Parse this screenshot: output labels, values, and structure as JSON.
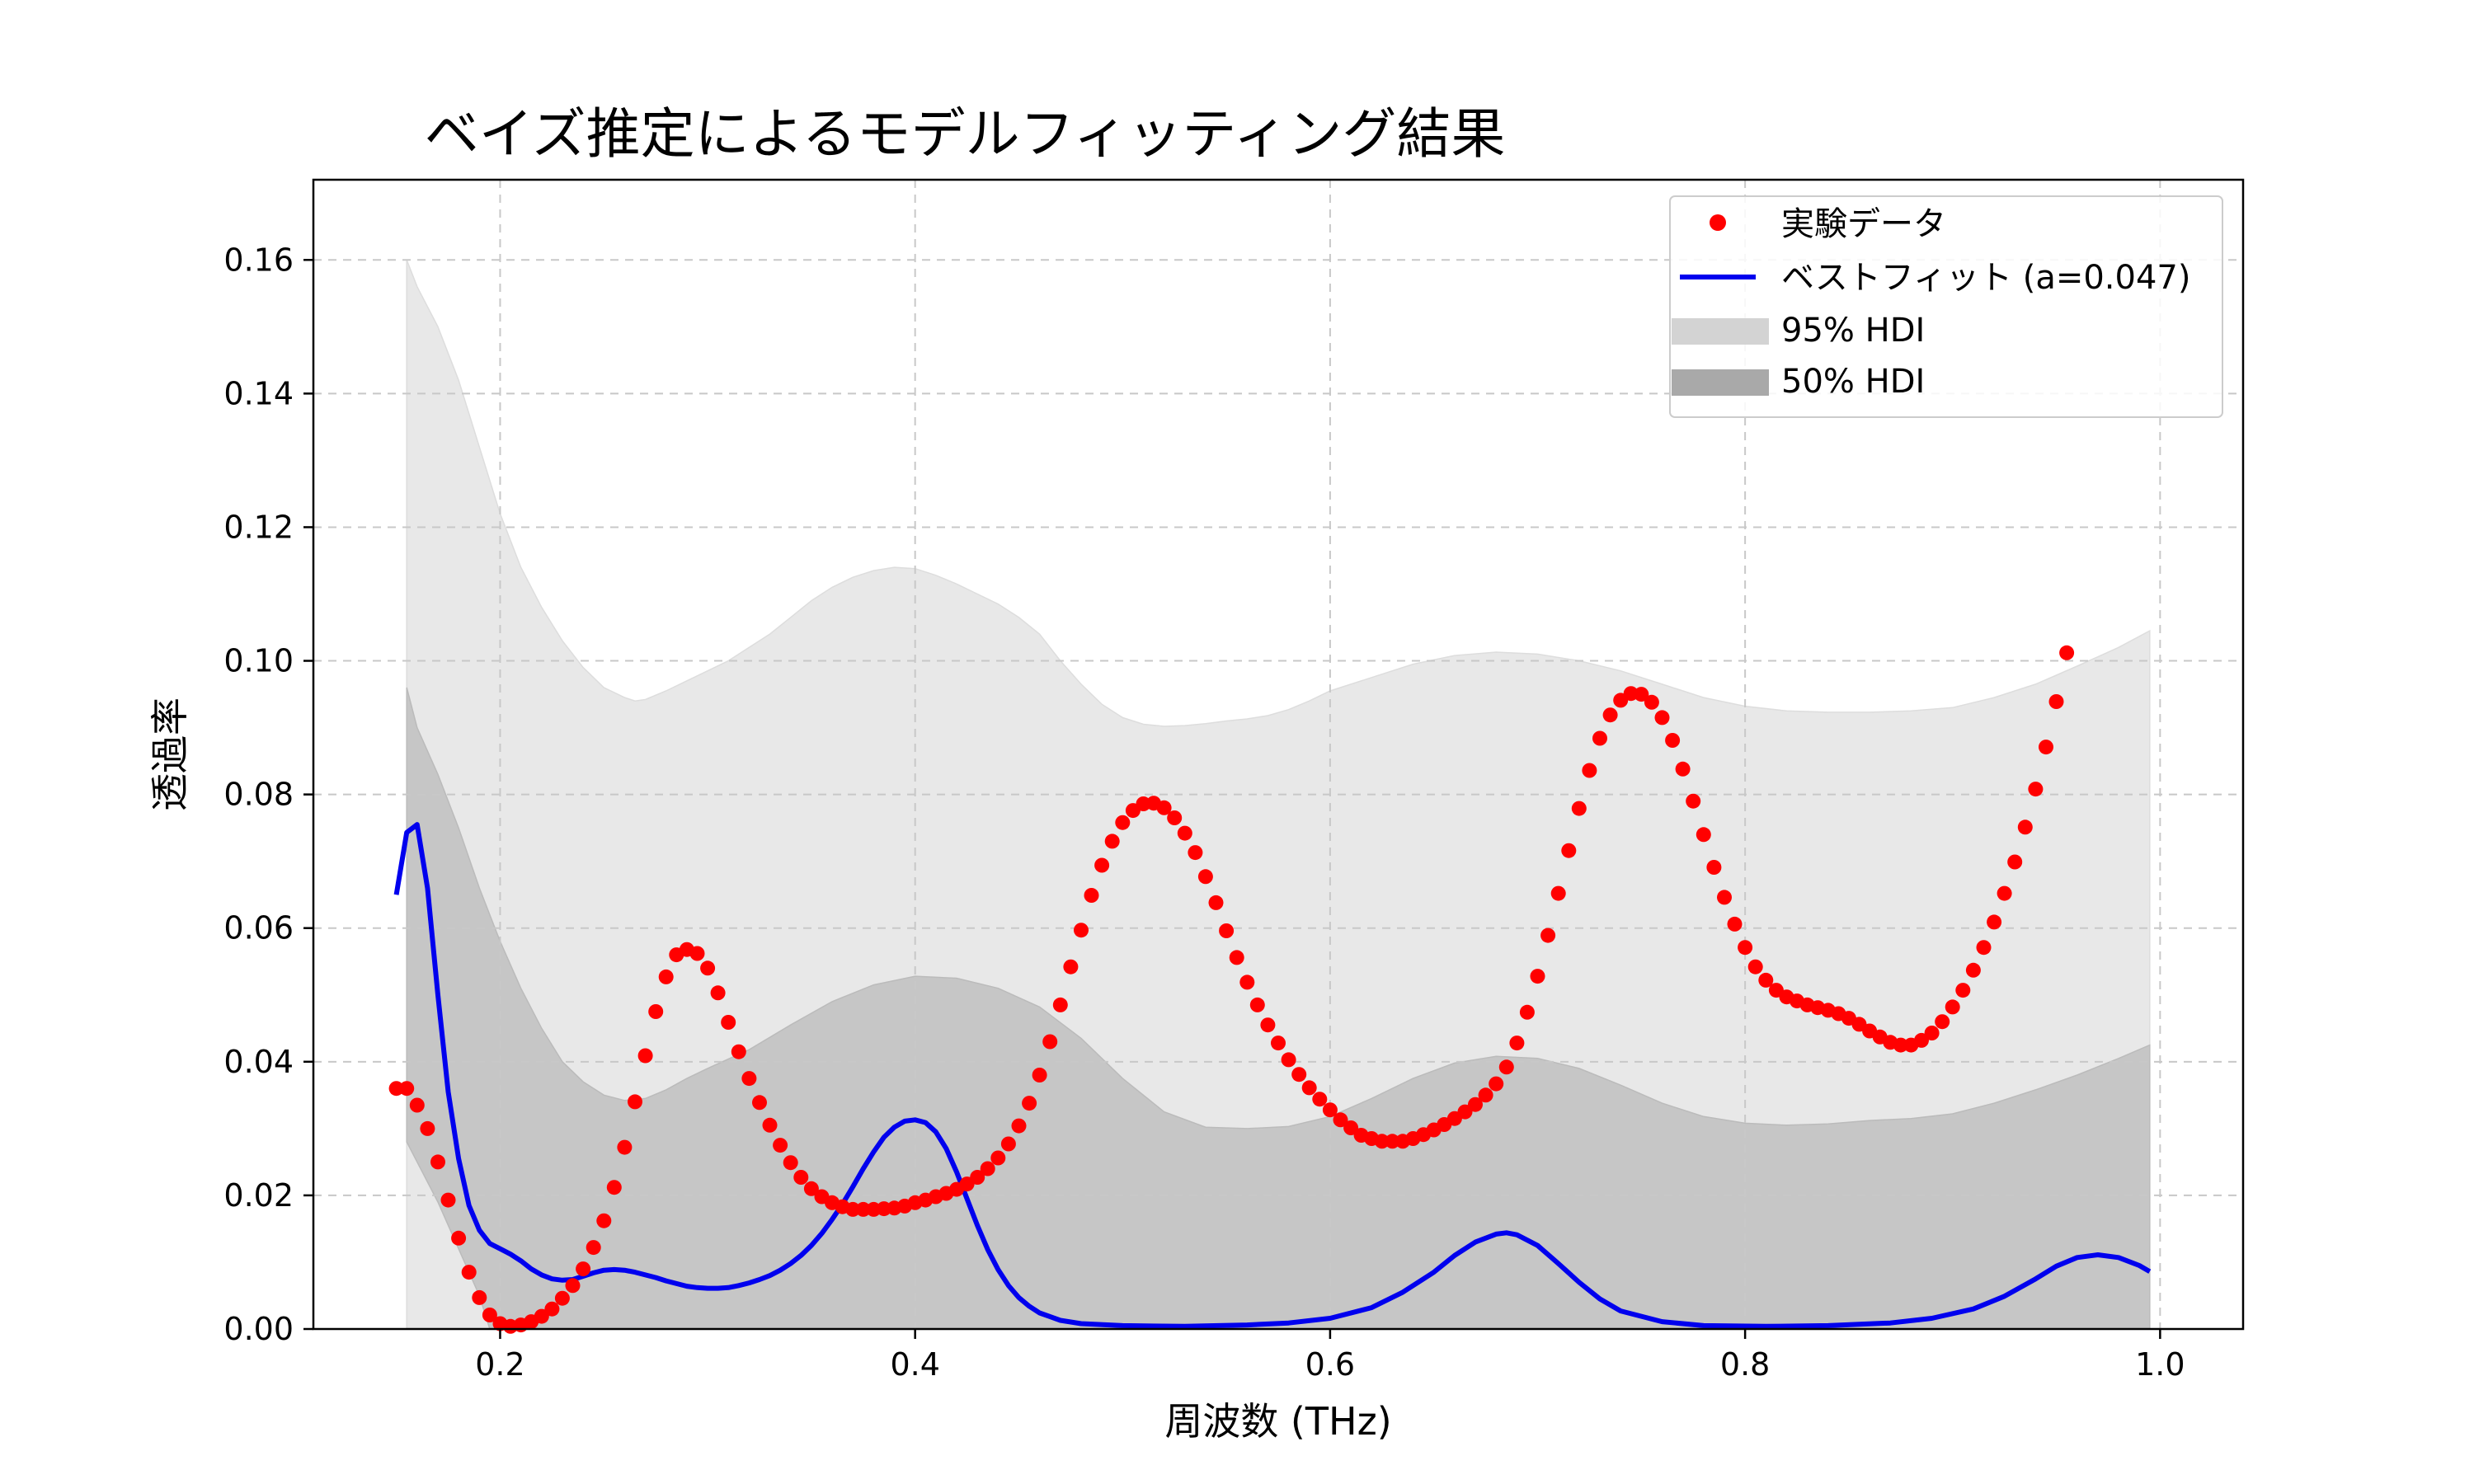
{
  "chart_data": {
    "type": "line",
    "title": "ベイズ推定によるモデルフィッティング結果",
    "xlabel": "周波数 (THz)",
    "ylabel": "透過率",
    "xlim": [
      0.11,
      1.04
    ],
    "ylim": [
      0.0,
      0.172
    ],
    "x_ticks": [
      0.2,
      0.4,
      0.6,
      0.8,
      1.0
    ],
    "x_tick_labels": [
      "0.2",
      "0.4",
      "0.6",
      "0.8",
      "1.0"
    ],
    "y_ticks": [
      0.0,
      0.02,
      0.04,
      0.06,
      0.08,
      0.1,
      0.12,
      0.14,
      0.16
    ],
    "y_tick_labels": [
      "0.00",
      "0.02",
      "0.04",
      "0.06",
      "0.08",
      "0.10",
      "0.12",
      "0.14",
      "0.16"
    ],
    "grid": true,
    "legend_position": "top-right",
    "colors": {
      "data": "#ff0000",
      "fit": "#0000ee",
      "hdi95": "#e8e8e8",
      "hdi50": "#c6c6c6",
      "hdi95_legend": "#d3d3d3",
      "hdi50_legend": "#a9a9a9"
    },
    "series": [
      {
        "name": "実験データ",
        "kind": "scatter",
        "x_start": 0.15,
        "x_step": 0.005,
        "y": [
          0.036,
          0.036,
          0.0335,
          0.03,
          0.025,
          0.0193,
          0.0136,
          0.0085,
          0.0047,
          0.0021,
          0.0008,
          0.0004,
          0.0006,
          0.0011,
          0.0019,
          0.003,
          0.0046,
          0.0065,
          0.009,
          0.0122,
          0.0162,
          0.0212,
          0.0272,
          0.034,
          0.0409,
          0.0475,
          0.0527,
          0.056,
          0.0568,
          0.0562,
          0.054,
          0.0503,
          0.0459,
          0.0415,
          0.0375,
          0.0339,
          0.0305,
          0.0275,
          0.0249,
          0.0227,
          0.021,
          0.0198,
          0.0189,
          0.0183,
          0.0179,
          0.0179,
          0.0179,
          0.018,
          0.0181,
          0.0184,
          0.0189,
          0.0193,
          0.0198,
          0.0203,
          0.0209,
          0.0217,
          0.0227,
          0.024,
          0.0256,
          0.0277,
          0.0304,
          0.0338,
          0.038,
          0.043,
          0.0485,
          0.0542,
          0.0597,
          0.0649,
          0.0694,
          0.073,
          0.0758,
          0.0776,
          0.0786,
          0.0787,
          0.078,
          0.0765,
          0.0742,
          0.0713,
          0.0677,
          0.0638,
          0.0596,
          0.0556,
          0.0519,
          0.0485,
          0.0455,
          0.0428,
          0.0403,
          0.0381,
          0.0361,
          0.0344,
          0.0328,
          0.0313,
          0.0301,
          0.029,
          0.0285,
          0.0281,
          0.0281,
          0.0281,
          0.0285,
          0.0291,
          0.0298,
          0.0306,
          0.0315,
          0.0325,
          0.0336,
          0.035,
          0.0367,
          0.0392,
          0.0428,
          0.0474,
          0.0528,
          0.0589,
          0.0652,
          0.0716,
          0.0779,
          0.0836,
          0.0884,
          0.0919,
          0.0941,
          0.0951,
          0.095,
          0.0938,
          0.0915,
          0.0881,
          0.0838,
          0.079,
          0.074,
          0.0691,
          0.0646,
          0.0606,
          0.0571,
          0.0542,
          0.0522,
          0.0507,
          0.0497,
          0.0491,
          0.0485,
          0.0481,
          0.0477,
          0.0472,
          0.0465,
          0.0456,
          0.0446,
          0.0437,
          0.0429,
          0.0425,
          0.0425,
          0.0432,
          0.0443,
          0.046,
          0.0482,
          0.0507,
          0.0537,
          0.0571,
          0.0609,
          0.0652,
          0.0699,
          0.0751,
          0.0808,
          0.0871,
          0.0939,
          0.1012
        ]
      },
      {
        "name": "ベストフィット (a=0.047)",
        "kind": "line",
        "points": [
          [
            0.15,
            0.065
          ],
          [
            0.155,
            0.0743
          ],
          [
            0.16,
            0.0755
          ],
          [
            0.165,
            0.066
          ],
          [
            0.17,
            0.05
          ],
          [
            0.175,
            0.0355
          ],
          [
            0.18,
            0.0255
          ],
          [
            0.185,
            0.0185
          ],
          [
            0.19,
            0.0148
          ],
          [
            0.195,
            0.0128
          ],
          [
            0.2,
            0.012
          ],
          [
            0.205,
            0.0112
          ],
          [
            0.21,
            0.0102
          ],
          [
            0.215,
            0.009
          ],
          [
            0.22,
            0.0081
          ],
          [
            0.225,
            0.0075
          ],
          [
            0.23,
            0.0073
          ],
          [
            0.235,
            0.0074
          ],
          [
            0.24,
            0.0079
          ],
          [
            0.245,
            0.0084
          ],
          [
            0.25,
            0.0088
          ],
          [
            0.255,
            0.0089
          ],
          [
            0.26,
            0.0088
          ],
          [
            0.265,
            0.0085
          ],
          [
            0.27,
            0.0081
          ],
          [
            0.275,
            0.0077
          ],
          [
            0.28,
            0.0072
          ],
          [
            0.285,
            0.0068
          ],
          [
            0.29,
            0.0064
          ],
          [
            0.295,
            0.0062
          ],
          [
            0.3,
            0.0061
          ],
          [
            0.305,
            0.0061
          ],
          [
            0.31,
            0.0062
          ],
          [
            0.315,
            0.0065
          ],
          [
            0.32,
            0.0069
          ],
          [
            0.325,
            0.0074
          ],
          [
            0.33,
            0.008
          ],
          [
            0.335,
            0.0088
          ],
          [
            0.34,
            0.0098
          ],
          [
            0.345,
            0.011
          ],
          [
            0.35,
            0.0125
          ],
          [
            0.355,
            0.0143
          ],
          [
            0.36,
            0.0164
          ],
          [
            0.365,
            0.0187
          ],
          [
            0.37,
            0.0213
          ],
          [
            0.375,
            0.024
          ],
          [
            0.38,
            0.0265
          ],
          [
            0.385,
            0.0287
          ],
          [
            0.39,
            0.0302
          ],
          [
            0.395,
            0.0311
          ],
          [
            0.4,
            0.0313
          ],
          [
            0.405,
            0.0309
          ],
          [
            0.41,
            0.0295
          ],
          [
            0.415,
            0.027
          ],
          [
            0.42,
            0.0235
          ],
          [
            0.425,
            0.0195
          ],
          [
            0.43,
            0.0155
          ],
          [
            0.435,
            0.0119
          ],
          [
            0.44,
            0.0089
          ],
          [
            0.445,
            0.0065
          ],
          [
            0.45,
            0.0047
          ],
          [
            0.455,
            0.0034
          ],
          [
            0.46,
            0.0024
          ],
          [
            0.47,
            0.0013
          ],
          [
            0.48,
            0.0008
          ],
          [
            0.5,
            0.0005
          ],
          [
            0.53,
            0.0004
          ],
          [
            0.56,
            0.0006
          ],
          [
            0.58,
            0.0009
          ],
          [
            0.6,
            0.0016
          ],
          [
            0.62,
            0.0032
          ],
          [
            0.635,
            0.0055
          ],
          [
            0.65,
            0.0085
          ],
          [
            0.66,
            0.011
          ],
          [
            0.67,
            0.013
          ],
          [
            0.68,
            0.0142
          ],
          [
            0.685,
            0.0144
          ],
          [
            0.69,
            0.0141
          ],
          [
            0.7,
            0.0125
          ],
          [
            0.71,
            0.0098
          ],
          [
            0.72,
            0.007
          ],
          [
            0.73,
            0.0045
          ],
          [
            0.74,
            0.0027
          ],
          [
            0.76,
            0.0011
          ],
          [
            0.78,
            0.0005
          ],
          [
            0.81,
            0.0004
          ],
          [
            0.84,
            0.0005
          ],
          [
            0.87,
            0.0009
          ],
          [
            0.89,
            0.0016
          ],
          [
            0.91,
            0.003
          ],
          [
            0.925,
            0.0049
          ],
          [
            0.94,
            0.0075
          ],
          [
            0.95,
            0.0094
          ],
          [
            0.96,
            0.0107
          ],
          [
            0.97,
            0.0111
          ],
          [
            0.98,
            0.0107
          ],
          [
            0.99,
            0.0095
          ],
          [
            0.995,
            0.0086
          ]
        ]
      },
      {
        "name": "95% HDI",
        "kind": "band",
        "lower": [
          [
            0.155,
            0.0
          ],
          [
            0.995,
            0.0
          ]
        ],
        "upper": [
          [
            0.155,
            0.16
          ],
          [
            0.16,
            0.156
          ],
          [
            0.17,
            0.15
          ],
          [
            0.18,
            0.142
          ],
          [
            0.19,
            0.132
          ],
          [
            0.2,
            0.122
          ],
          [
            0.21,
            0.114
          ],
          [
            0.22,
            0.108
          ],
          [
            0.23,
            0.103
          ],
          [
            0.24,
            0.099
          ],
          [
            0.25,
            0.096
          ],
          [
            0.26,
            0.0945
          ],
          [
            0.265,
            0.094
          ],
          [
            0.27,
            0.0942
          ],
          [
            0.28,
            0.0955
          ],
          [
            0.29,
            0.097
          ],
          [
            0.3,
            0.0985
          ],
          [
            0.31,
            0.1
          ],
          [
            0.32,
            0.102
          ],
          [
            0.33,
            0.104
          ],
          [
            0.34,
            0.1065
          ],
          [
            0.35,
            0.109
          ],
          [
            0.36,
            0.111
          ],
          [
            0.37,
            0.1125
          ],
          [
            0.38,
            0.1135
          ],
          [
            0.39,
            0.114
          ],
          [
            0.4,
            0.1138
          ],
          [
            0.41,
            0.1128
          ],
          [
            0.42,
            0.1115
          ],
          [
            0.43,
            0.11
          ],
          [
            0.44,
            0.1085
          ],
          [
            0.45,
            0.1065
          ],
          [
            0.46,
            0.104
          ],
          [
            0.47,
            0.1
          ],
          [
            0.48,
            0.0965
          ],
          [
            0.49,
            0.0935
          ],
          [
            0.5,
            0.0915
          ],
          [
            0.51,
            0.0905
          ],
          [
            0.52,
            0.0902
          ],
          [
            0.53,
            0.0903
          ],
          [
            0.54,
            0.0906
          ],
          [
            0.55,
            0.091
          ],
          [
            0.56,
            0.0913
          ],
          [
            0.57,
            0.0918
          ],
          [
            0.58,
            0.0927
          ],
          [
            0.59,
            0.094
          ],
          [
            0.6,
            0.0955
          ],
          [
            0.62,
            0.0975
          ],
          [
            0.64,
            0.0995
          ],
          [
            0.66,
            0.1008
          ],
          [
            0.68,
            0.1013
          ],
          [
            0.7,
            0.101
          ],
          [
            0.72,
            0.1
          ],
          [
            0.74,
            0.0985
          ],
          [
            0.76,
            0.0965
          ],
          [
            0.78,
            0.0945
          ],
          [
            0.8,
            0.0932
          ],
          [
            0.82,
            0.0925
          ],
          [
            0.84,
            0.0923
          ],
          [
            0.86,
            0.0923
          ],
          [
            0.88,
            0.0925
          ],
          [
            0.9,
            0.093
          ],
          [
            0.92,
            0.0945
          ],
          [
            0.94,
            0.0965
          ],
          [
            0.96,
            0.0992
          ],
          [
            0.98,
            0.102
          ],
          [
            0.995,
            0.1045
          ]
        ]
      },
      {
        "name": "50% HDI",
        "kind": "band",
        "lower": [
          [
            0.155,
            0.028
          ],
          [
            0.16,
            0.025
          ],
          [
            0.17,
            0.019
          ],
          [
            0.18,
            0.012
          ],
          [
            0.19,
            0.005
          ],
          [
            0.195,
            0.0
          ],
          [
            0.995,
            0.0
          ]
        ],
        "upper": [
          [
            0.155,
            0.096
          ],
          [
            0.16,
            0.09
          ],
          [
            0.17,
            0.083
          ],
          [
            0.18,
            0.075
          ],
          [
            0.19,
            0.066
          ],
          [
            0.2,
            0.058
          ],
          [
            0.21,
            0.051
          ],
          [
            0.22,
            0.045
          ],
          [
            0.23,
            0.04
          ],
          [
            0.24,
            0.037
          ],
          [
            0.25,
            0.035
          ],
          [
            0.26,
            0.0342
          ],
          [
            0.27,
            0.0345
          ],
          [
            0.28,
            0.0358
          ],
          [
            0.29,
            0.0375
          ],
          [
            0.3,
            0.039
          ],
          [
            0.32,
            0.0418
          ],
          [
            0.34,
            0.0455
          ],
          [
            0.36,
            0.049
          ],
          [
            0.38,
            0.0515
          ],
          [
            0.4,
            0.0528
          ],
          [
            0.42,
            0.0525
          ],
          [
            0.44,
            0.051
          ],
          [
            0.46,
            0.0482
          ],
          [
            0.48,
            0.0435
          ],
          [
            0.5,
            0.0375
          ],
          [
            0.52,
            0.0325
          ],
          [
            0.54,
            0.0302
          ],
          [
            0.56,
            0.03
          ],
          [
            0.58,
            0.0303
          ],
          [
            0.6,
            0.0318
          ],
          [
            0.62,
            0.0345
          ],
          [
            0.64,
            0.0375
          ],
          [
            0.66,
            0.0398
          ],
          [
            0.68,
            0.0408
          ],
          [
            0.7,
            0.0405
          ],
          [
            0.72,
            0.039
          ],
          [
            0.74,
            0.0365
          ],
          [
            0.76,
            0.0338
          ],
          [
            0.78,
            0.0318
          ],
          [
            0.8,
            0.0308
          ],
          [
            0.82,
            0.0305
          ],
          [
            0.84,
            0.0307
          ],
          [
            0.86,
            0.0312
          ],
          [
            0.88,
            0.0315
          ],
          [
            0.9,
            0.0322
          ],
          [
            0.92,
            0.0338
          ],
          [
            0.94,
            0.0358
          ],
          [
            0.96,
            0.038
          ],
          [
            0.98,
            0.0405
          ],
          [
            0.995,
            0.0425
          ]
        ]
      }
    ],
    "legend": [
      {
        "label": "実験データ",
        "marker": "dot"
      },
      {
        "label": "ベストフィット (a=0.047)",
        "marker": "line"
      },
      {
        "label": "95% HDI",
        "marker": "patch-light"
      },
      {
        "label": "50% HDI",
        "marker": "patch-dark"
      }
    ]
  }
}
